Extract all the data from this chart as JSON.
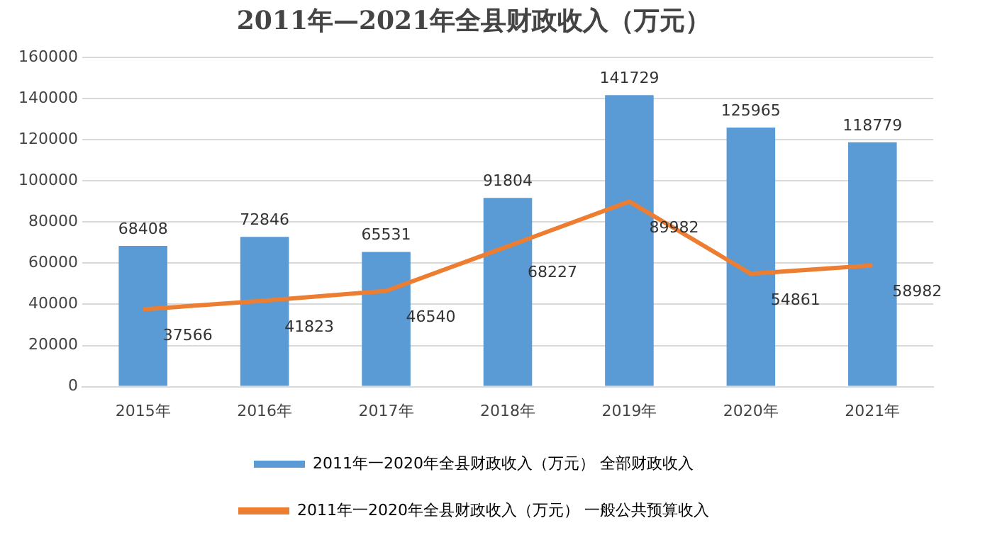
{
  "chart_data": {
    "type": "bar",
    "title": "2011年—2021年全县财政收入（万元）",
    "categories": [
      "2015年",
      "2016年",
      "2017年",
      "2018年",
      "2019年",
      "2020年",
      "2021年"
    ],
    "series": [
      {
        "name": "2011年一2020年全县财政收入（万元） 全部财政收入",
        "color": "#5b9bd5",
        "values": [
          68408,
          72846,
          65531,
          91804,
          141729,
          125965,
          118779
        ]
      },
      {
        "name": "2011年一2020年全县财政收入（万元） 一般公共预算收入",
        "type": "line",
        "color": "#ed7d31",
        "values": [
          37566,
          41823,
          46540,
          68227,
          89982,
          54861,
          58982
        ]
      }
    ],
    "ylim": [
      0,
      160000
    ],
    "yticks": [
      0,
      20000,
      40000,
      60000,
      80000,
      100000,
      120000,
      140000,
      160000
    ],
    "grid": "y",
    "legend": "bottom",
    "marker": "none",
    "line_style": "solid",
    "data_labels": true
  }
}
